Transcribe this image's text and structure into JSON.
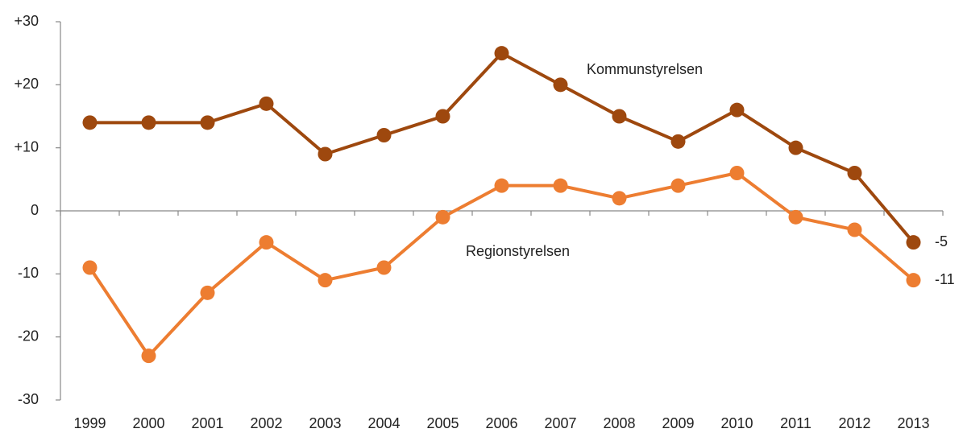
{
  "chart_data": {
    "type": "line",
    "categories": [
      "1999",
      "2000",
      "2001",
      "2002",
      "2003",
      "2004",
      "2005",
      "2006",
      "2007",
      "2008",
      "2009",
      "2010",
      "2011",
      "2012",
      "2013"
    ],
    "series": [
      {
        "name": "Kommunstyrelsen",
        "color": "#9e480e",
        "values": [
          14,
          14,
          14,
          17,
          9,
          12,
          15,
          25,
          20,
          15,
          11,
          16,
          10,
          6,
          -5
        ]
      },
      {
        "name": "Regionstyrelsen",
        "color": "#ed7d31",
        "values": [
          -9,
          -23,
          -13,
          -5,
          -11,
          -9,
          -1,
          4,
          4,
          2,
          4,
          6,
          -1,
          -3,
          -11
        ]
      }
    ],
    "ylim": [
      -30,
      30
    ],
    "yticks": [
      {
        "value": 30,
        "label": "+30"
      },
      {
        "value": 20,
        "label": "+20"
      },
      {
        "value": 10,
        "label": "+10"
      },
      0,
      -10,
      -20,
      -30
    ],
    "grid": false
  }
}
